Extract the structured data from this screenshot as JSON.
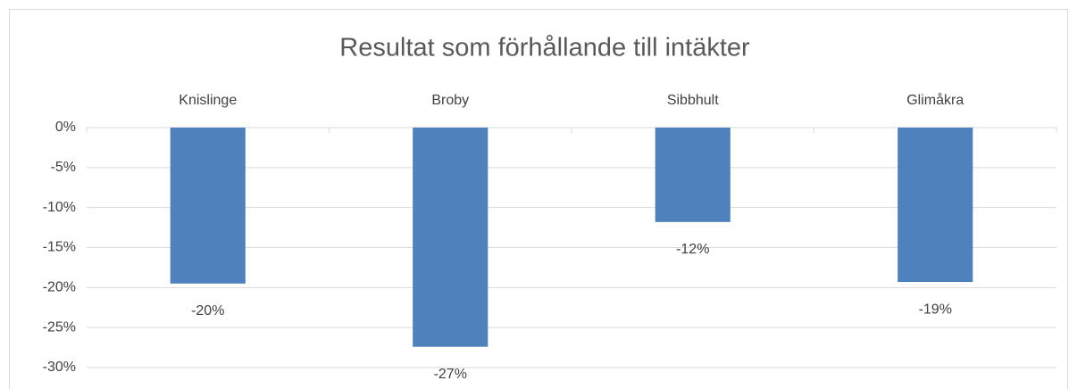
{
  "chart_data": {
    "type": "bar",
    "title": "Resultat som förhållande till intäkter",
    "categories": [
      "Knislinge",
      "Broby",
      "Sibbhult",
      "Glimåkra"
    ],
    "values": [
      -19.5,
      -27.4,
      -11.8,
      -19.3
    ],
    "value_labels": [
      "-20%",
      "-27%",
      "-12%",
      "-19%"
    ],
    "color": "#4f81bd",
    "ylim": [
      -30,
      0
    ],
    "yticks": [
      {
        "value": 0,
        "label": "0%"
      },
      {
        "value": -5,
        "label": "-5%"
      },
      {
        "value": -10,
        "label": "-10%"
      },
      {
        "value": -15,
        "label": "-15%"
      },
      {
        "value": -20,
        "label": "-20%"
      },
      {
        "value": -25,
        "label": "-25%"
      },
      {
        "value": -30,
        "label": "-30%"
      }
    ],
    "grid": true
  }
}
